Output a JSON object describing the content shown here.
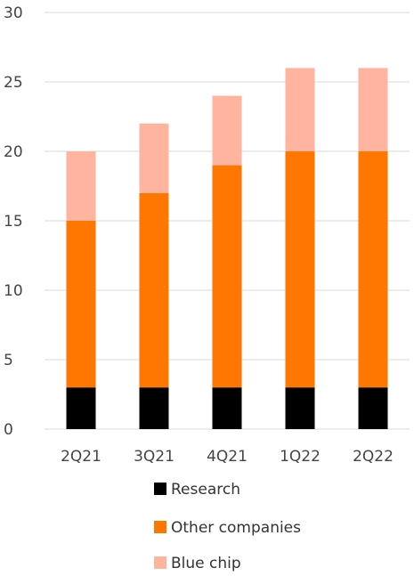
{
  "chart_data": {
    "type": "bar",
    "stacked": true,
    "categories": [
      "2Q21",
      "3Q21",
      "4Q21",
      "1Q22",
      "2Q22"
    ],
    "series": [
      {
        "name": "Research",
        "values": [
          3,
          3,
          3,
          3,
          3
        ],
        "color": "#000000"
      },
      {
        "name": "Other companies",
        "values": [
          12,
          14,
          16,
          17,
          17
        ],
        "color": "#ff7700"
      },
      {
        "name": "Blue chip",
        "values": [
          5,
          5,
          5,
          6,
          6
        ],
        "color": "#ffb4a0"
      }
    ],
    "ylim": [
      0,
      30
    ],
    "yticks": [
      0,
      5,
      10,
      15,
      20,
      25,
      30
    ],
    "grid": true,
    "legend_position": "bottom",
    "colors": {
      "grid": "#d9d9d9",
      "text": "#444444"
    }
  }
}
